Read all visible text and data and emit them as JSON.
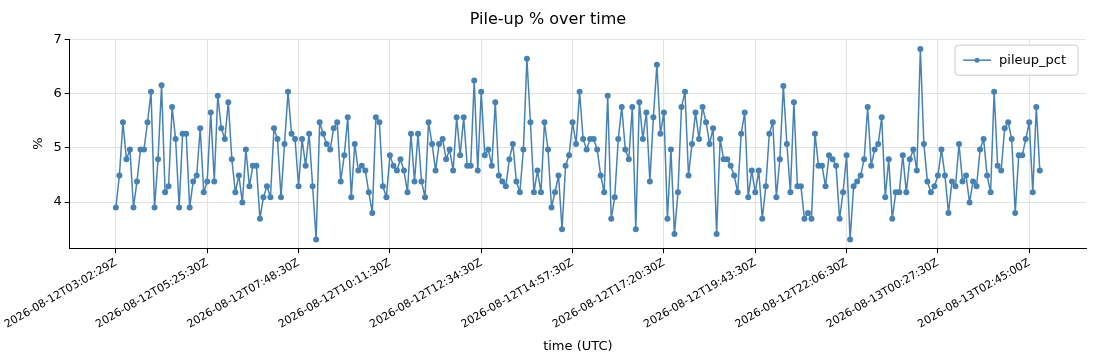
{
  "chart_data": {
    "type": "line",
    "title": "Pile-up % over time",
    "xlabel": "time (UTC)",
    "ylabel": "%",
    "categories": [
      "2026-08-12T03:02:29Z",
      null,
      null,
      null,
      null,
      null,
      null,
      null,
      null,
      null,
      null,
      null,
      null,
      null,
      null,
      null,
      null,
      null,
      null,
      null,
      null,
      null,
      null,
      null,
      null,
      null,
      "2026-08-12T05:25:30Z",
      null,
      null,
      null,
      null,
      null,
      null,
      null,
      null,
      null,
      null,
      null,
      null,
      null,
      null,
      null,
      null,
      null,
      null,
      null,
      null,
      null,
      null,
      null,
      null,
      null,
      "2026-08-12T07:48:30Z",
      null,
      null,
      null,
      null,
      null,
      null,
      null,
      null,
      null,
      null,
      null,
      null,
      null,
      null,
      null,
      null,
      null,
      null,
      null,
      null,
      null,
      null,
      null,
      null,
      null,
      "2026-08-12T10:11:30Z",
      null,
      null,
      null,
      null,
      null,
      null,
      null,
      null,
      null,
      null,
      null,
      null,
      null,
      null,
      null,
      null,
      null,
      null,
      null,
      null,
      null,
      null,
      null,
      null,
      null,
      "2026-08-12T12:34:30Z",
      null,
      null,
      null,
      null,
      null,
      null,
      null,
      null,
      null,
      null,
      null,
      null,
      null,
      null,
      null,
      null,
      null,
      null,
      null,
      null,
      null,
      null,
      null,
      null,
      null,
      "2026-08-12T14:57:30Z",
      null,
      null,
      null,
      null,
      null,
      null,
      null,
      null,
      null,
      null,
      null,
      null,
      null,
      null,
      null,
      null,
      null,
      null,
      null,
      null,
      null,
      null,
      null,
      null,
      null,
      "2026-08-12T17:20:30Z",
      null,
      null,
      null,
      null,
      null,
      null,
      null,
      null,
      null,
      null,
      null,
      null,
      null,
      null,
      null,
      null,
      null,
      null,
      null,
      null,
      null,
      null,
      null,
      null,
      null,
      "2026-08-12T19:43:30Z",
      null,
      null,
      null,
      null,
      null,
      null,
      null,
      null,
      null,
      null,
      null,
      null,
      null,
      null,
      null,
      null,
      null,
      null,
      null,
      null,
      null,
      null,
      null,
      null,
      null,
      "2026-08-12T22:06:30Z",
      null,
      null,
      null,
      null,
      null,
      null,
      null,
      null,
      null,
      null,
      null,
      null,
      null,
      null,
      null,
      null,
      null,
      null,
      null,
      null,
      null,
      null,
      null,
      null,
      null,
      "2026-08-13T00:27:30Z",
      null,
      null,
      null,
      null,
      null,
      null,
      null,
      null,
      null,
      null,
      null,
      null,
      null,
      null,
      null,
      null,
      null,
      null,
      null,
      null,
      null,
      null,
      null,
      null,
      null,
      "2026-08-13T02:45:00Z",
      null,
      null,
      null
    ],
    "series": [
      {
        "name": "pileup_pct",
        "color": "#4682b4",
        "values": [
          3.9,
          4.49,
          5.47,
          4.79,
          4.97,
          3.9,
          4.38,
          4.97,
          4.97,
          5.47,
          6.03,
          3.9,
          4.79,
          6.15,
          4.18,
          4.29,
          5.75,
          5.16,
          3.9,
          5.26,
          5.26,
          3.9,
          4.38,
          4.49,
          5.36,
          4.18,
          4.38,
          5.65,
          4.38,
          5.96,
          5.36,
          5.16,
          5.84,
          4.79,
          4.18,
          4.49,
          3.99,
          4.97,
          4.29,
          4.67,
          4.67,
          3.69,
          4.09,
          4.29,
          4.09,
          5.36,
          5.16,
          4.09,
          5.07,
          6.03,
          5.26,
          5.16,
          4.29,
          5.16,
          4.67,
          5.26,
          4.29,
          3.31,
          5.47,
          5.26,
          5.07,
          4.97,
          5.36,
          5.47,
          4.38,
          4.86,
          5.56,
          4.09,
          5.07,
          4.58,
          4.67,
          4.58,
          4.18,
          3.8,
          5.56,
          5.47,
          4.29,
          4.09,
          4.86,
          4.67,
          4.58,
          4.79,
          4.58,
          4.18,
          5.26,
          4.38,
          5.26,
          4.38,
          4.09,
          5.47,
          5.07,
          4.58,
          5.07,
          5.16,
          4.79,
          4.97,
          4.58,
          5.56,
          4.86,
          5.56,
          4.67,
          4.67,
          6.24,
          4.58,
          6.03,
          4.86,
          4.97,
          4.67,
          5.84,
          4.49,
          4.38,
          4.29,
          4.79,
          5.07,
          4.38,
          4.18,
          4.97,
          6.64,
          5.47,
          4.18,
          4.58,
          4.18,
          5.47,
          4.97,
          3.9,
          4.18,
          4.49,
          3.5,
          4.67,
          4.86,
          5.47,
          5.07,
          6.03,
          5.16,
          4.97,
          5.16,
          5.16,
          4.97,
          4.49,
          4.18,
          5.96,
          3.69,
          4.09,
          5.16,
          5.75,
          4.97,
          4.79,
          5.75,
          3.5,
          5.84,
          5.16,
          5.65,
          4.38,
          5.56,
          6.53,
          5.26,
          5.65,
          3.69,
          4.97,
          3.41,
          4.18,
          5.75,
          6.03,
          4.49,
          5.07,
          5.65,
          5.16,
          5.75,
          5.47,
          5.07,
          5.36,
          3.41,
          5.16,
          4.79,
          4.79,
          4.67,
          4.49,
          4.18,
          5.26,
          5.65,
          4.09,
          4.58,
          4.18,
          4.58,
          3.69,
          4.29,
          5.26,
          5.47,
          4.09,
          4.79,
          6.14,
          5.07,
          4.18,
          5.84,
          4.29,
          4.29,
          3.69,
          3.8,
          3.69,
          5.26,
          4.67,
          4.67,
          4.29,
          4.86,
          4.79,
          4.67,
          3.69,
          4.18,
          4.86,
          3.31,
          4.29,
          4.38,
          4.49,
          4.79,
          5.75,
          4.67,
          4.97,
          5.07,
          5.56,
          4.09,
          4.79,
          3.69,
          4.18,
          4.18,
          4.86,
          4.18,
          4.79,
          4.97,
          4.58,
          6.82,
          5.07,
          4.38,
          4.18,
          4.29,
          4.49,
          4.97,
          4.49,
          3.8,
          4.38,
          4.29,
          5.07,
          4.38,
          4.49,
          3.99,
          4.38,
          4.29,
          4.97,
          5.16,
          4.49,
          4.18,
          6.03,
          4.67,
          4.58,
          5.36,
          5.47,
          5.16,
          3.8,
          4.86,
          4.86,
          5.16,
          5.47,
          4.18,
          5.75,
          4.58
        ]
      }
    ],
    "ylim": [
      3.15,
      7.0
    ],
    "yticks": [
      4,
      5,
      6,
      7
    ],
    "grid": true,
    "legend": "top right",
    "marker": "circle"
  }
}
